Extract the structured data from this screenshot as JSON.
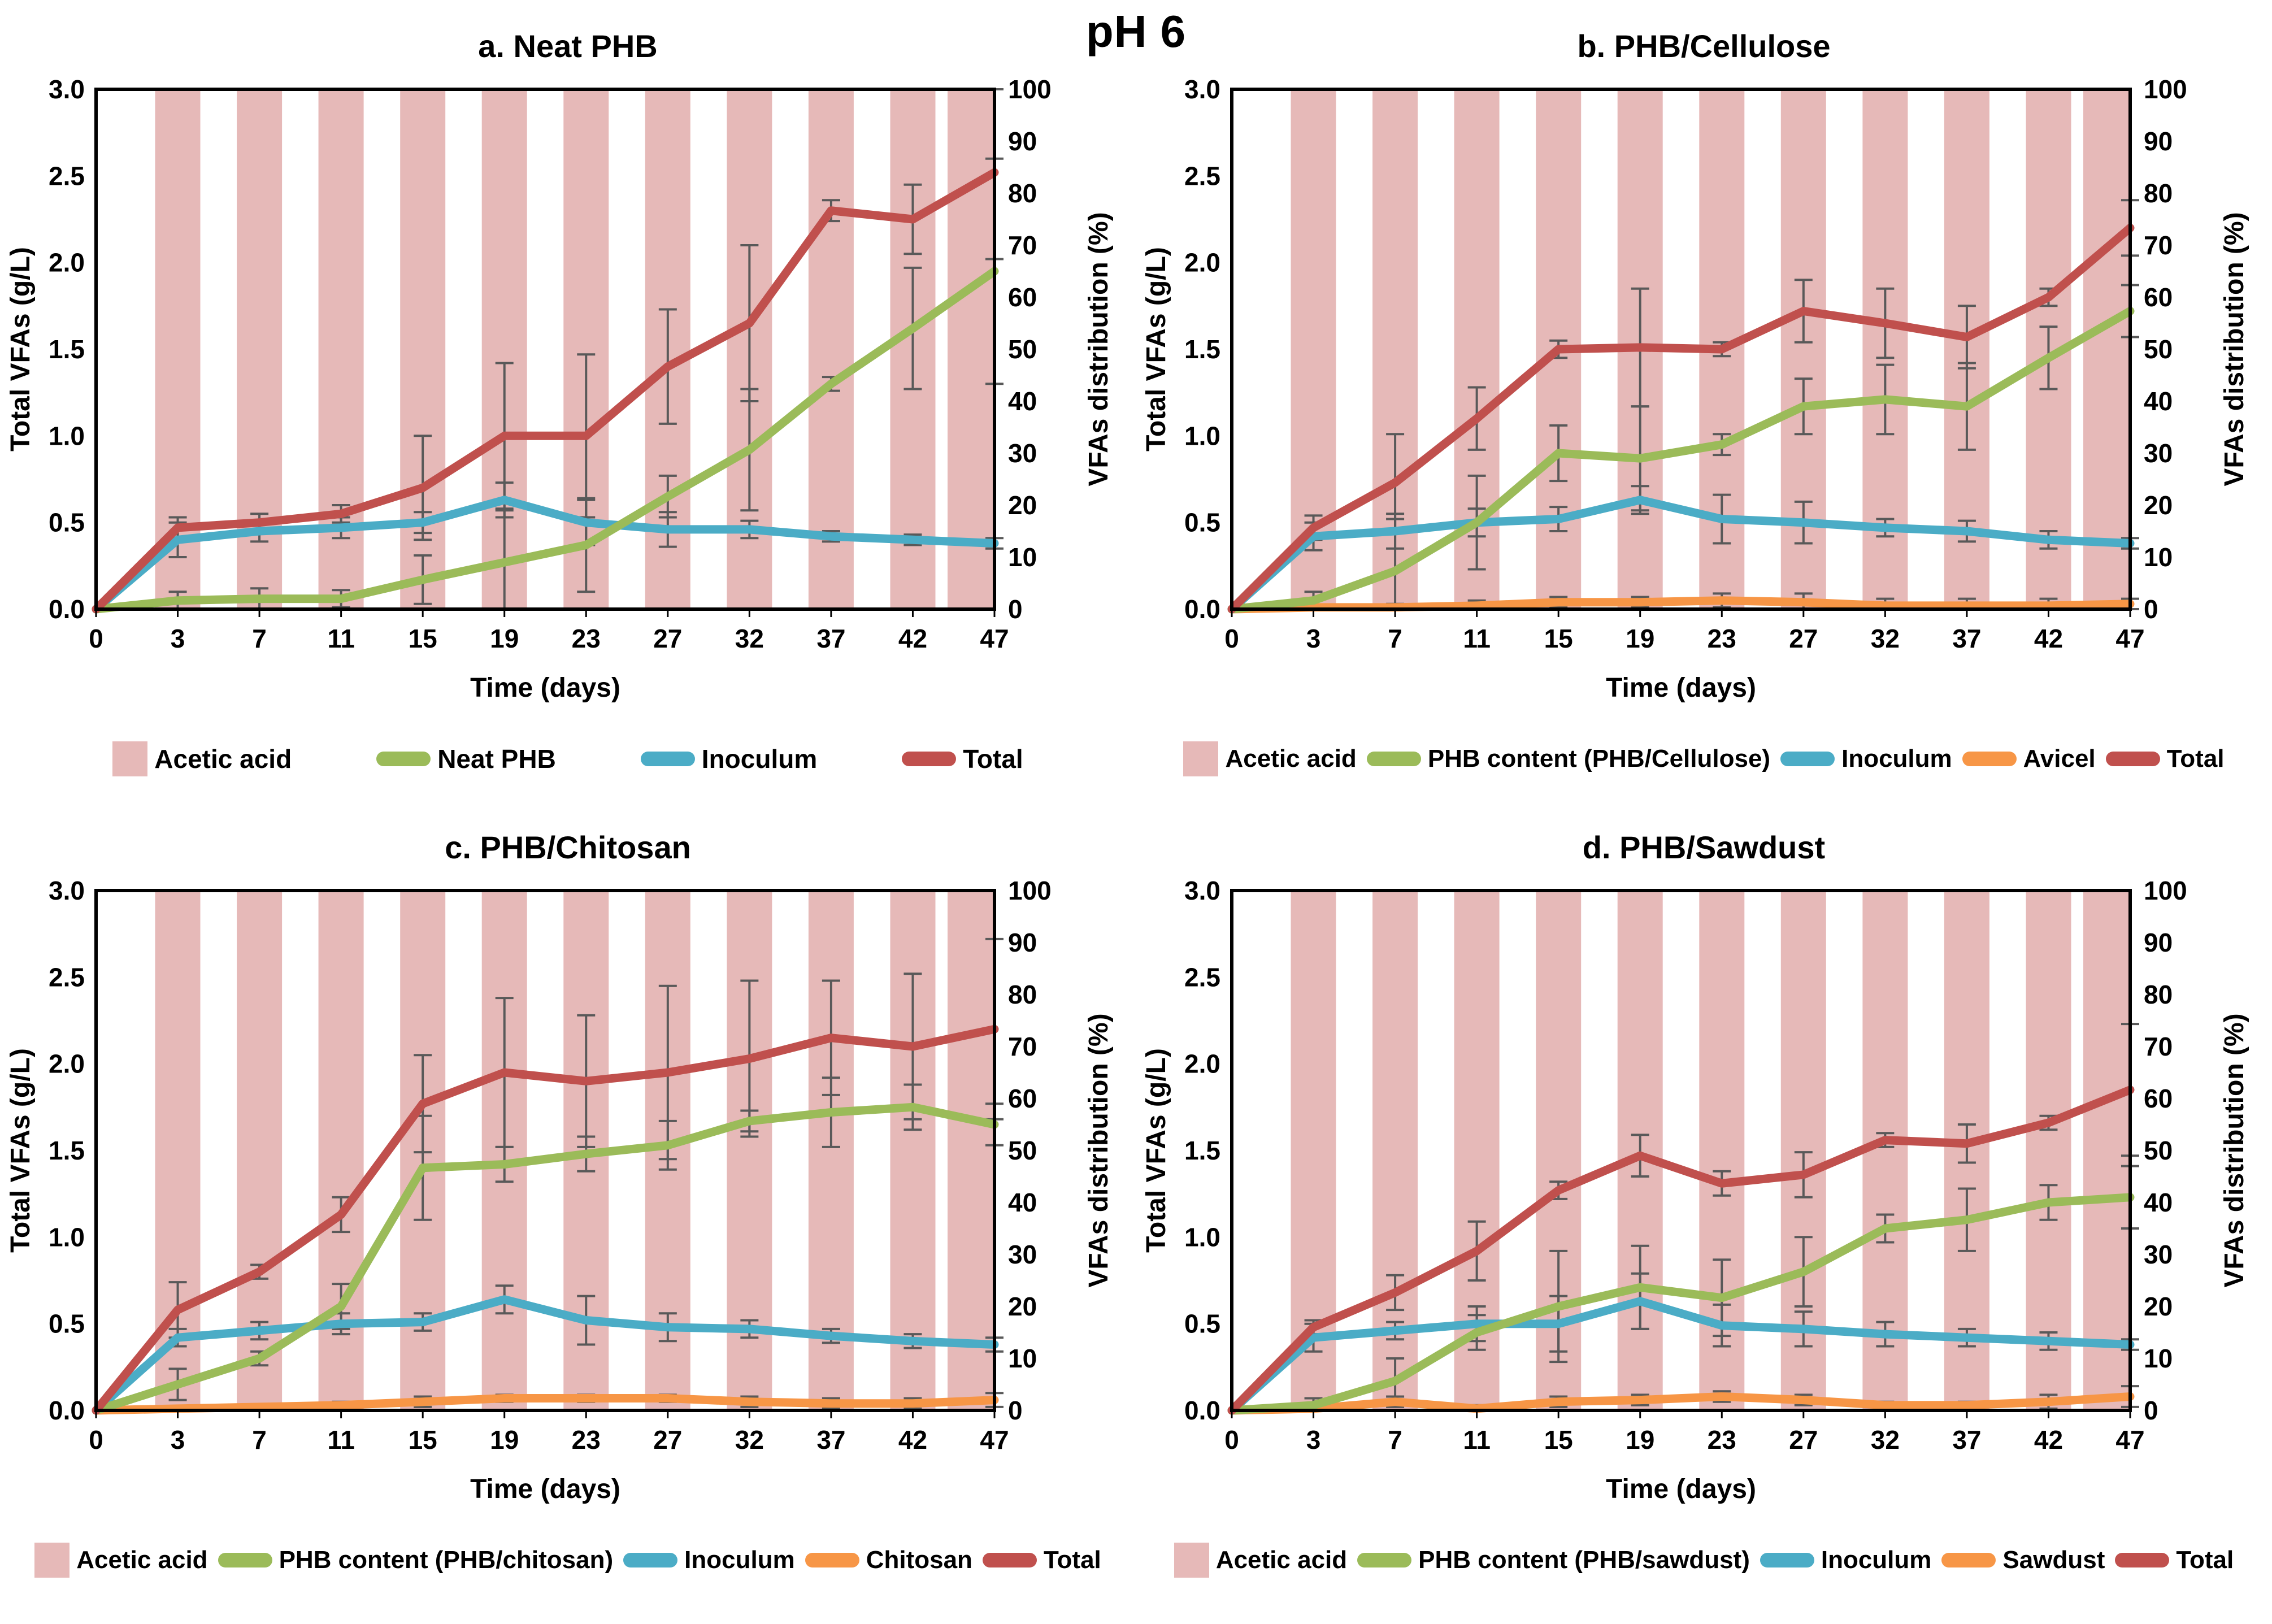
{
  "page_title": "pH 6",
  "colors": {
    "bar_pink": "#E6B9B8",
    "green": "#9BBB59",
    "blue": "#4BACC6",
    "red": "#C0504D",
    "orange": "#F79646",
    "error_gray": "#595959",
    "text": "#000000"
  },
  "axes": {
    "x_ticks": [
      0,
      3,
      7,
      11,
      15,
      19,
      23,
      27,
      32,
      37,
      42,
      47
    ],
    "y_left_ticks": [
      "0.0",
      "0.5",
      "1.0",
      "1.5",
      "2.0",
      "2.5",
      "3.0"
    ],
    "y_right_ticks": [
      "0",
      "10",
      "20",
      "30",
      "40",
      "50",
      "60",
      "70",
      "80",
      "90",
      "100"
    ]
  },
  "chart_data": [
    {
      "type": "bar+line",
      "panel": "a",
      "title": "a. Neat PHB",
      "xlabel": "Time (days)",
      "ylabel_left": "Total VFAs (g/L)",
      "ylabel_right": "VFAs distribution (%)",
      "ylim_left": [
        0,
        3
      ],
      "ylim_right": [
        0,
        100
      ],
      "x": [
        0,
        3,
        7,
        11,
        15,
        19,
        23,
        27,
        32,
        37,
        42,
        47
      ],
      "bar_series": {
        "name": "Acetic acid",
        "axis": "right",
        "color": "#E6B9B8",
        "values": [
          null,
          100,
          100,
          100,
          100,
          100,
          100,
          100,
          100,
          100,
          100,
          100
        ]
      },
      "series": [
        {
          "name": "Inoculum",
          "color": "#4BACC6",
          "values": [
            0,
            0.4,
            0.45,
            0.47,
            0.5,
            0.63,
            0.5,
            0.46,
            0.46,
            0.42,
            0.4,
            0.38
          ],
          "errors": [
            0,
            0.1,
            0.06,
            0.06,
            0.06,
            0.1,
            0.13,
            0.1,
            0.05,
            0.03,
            0.03,
            0.03
          ]
        },
        {
          "name": "Neat PHB",
          "color": "#9BBB59",
          "values": [
            0,
            0.05,
            0.06,
            0.06,
            0.17,
            0.27,
            0.37,
            0.65,
            0.92,
            1.3,
            1.62,
            1.95
          ],
          "errors": [
            0,
            0.05,
            0.06,
            0.05,
            0.14,
            0.3,
            0.27,
            0.12,
            0.35,
            0.04,
            0.35,
            0.65
          ]
        },
        {
          "name": "Total",
          "color": "#C0504D",
          "values": [
            0,
            0.47,
            0.5,
            0.55,
            0.7,
            1.0,
            1.0,
            1.4,
            1.65,
            2.3,
            2.25,
            2.52
          ],
          "errors": [
            0,
            0.06,
            0.05,
            0.05,
            0.3,
            0.42,
            0.47,
            0.33,
            0.45,
            0.06,
            0.2,
            0.5
          ]
        }
      ],
      "legend": [
        {
          "label": "Acetic acid",
          "type": "bar",
          "color": "#E6B9B8"
        },
        {
          "label": "Neat PHB",
          "type": "line",
          "color": "#9BBB59"
        },
        {
          "label": "Inoculum",
          "type": "line",
          "color": "#4BACC6"
        },
        {
          "label": "Total",
          "type": "line",
          "color": "#C0504D"
        }
      ]
    },
    {
      "type": "bar+line",
      "panel": "b",
      "title": "b. PHB/Cellulose",
      "xlabel": "Time (days)",
      "ylabel_left": "Total VFAs (g/L)",
      "ylabel_right": "VFAs distribution (%)",
      "ylim_left": [
        0,
        3
      ],
      "ylim_right": [
        0,
        100
      ],
      "x": [
        0,
        3,
        7,
        11,
        15,
        19,
        23,
        27,
        32,
        37,
        42,
        47
      ],
      "bar_series": {
        "name": "Acetic acid",
        "axis": "right",
        "color": "#E6B9B8",
        "values": [
          null,
          100,
          100,
          100,
          100,
          100,
          100,
          100,
          100,
          100,
          100,
          100
        ]
      },
      "series": [
        {
          "name": "Avicel",
          "color": "#F79646",
          "values": [
            0,
            0.01,
            0.01,
            0.02,
            0.04,
            0.04,
            0.05,
            0.04,
            0.02,
            0.02,
            0.02,
            0.03
          ],
          "errors": [
            0,
            0.05,
            0.02,
            0.03,
            0.03,
            0.03,
            0.04,
            0.05,
            0.04,
            0.04,
            0.04,
            0.03
          ]
        },
        {
          "name": "Inoculum",
          "color": "#4BACC6",
          "values": [
            0,
            0.42,
            0.45,
            0.5,
            0.52,
            0.63,
            0.52,
            0.5,
            0.47,
            0.45,
            0.4,
            0.38
          ],
          "errors": [
            0,
            0.08,
            0.1,
            0.08,
            0.07,
            0.08,
            0.14,
            0.12,
            0.05,
            0.06,
            0.05,
            0.03
          ]
        },
        {
          "name": "PHB content (PHB/Cellulose)",
          "color": "#9BBB59",
          "values": [
            0,
            0.05,
            0.22,
            0.5,
            0.9,
            0.87,
            0.95,
            1.17,
            1.21,
            1.17,
            1.45,
            1.72
          ],
          "errors": [
            0,
            0.05,
            0.3,
            0.27,
            0.16,
            0.3,
            0.06,
            0.16,
            0.2,
            0.25,
            0.18,
            0.15
          ]
        },
        {
          "name": "Total",
          "color": "#C0504D",
          "values": [
            0,
            0.47,
            0.73,
            1.1,
            1.5,
            1.51,
            1.5,
            1.72,
            1.65,
            1.57,
            1.8,
            2.2
          ],
          "errors": [
            0,
            0.07,
            0.28,
            0.18,
            0.05,
            0.34,
            0.04,
            0.18,
            0.2,
            0.18,
            0.05,
            0.16
          ]
        }
      ],
      "legend": [
        {
          "label": "Acetic acid",
          "type": "bar",
          "color": "#E6B9B8"
        },
        {
          "label": "PHB content (PHB/Cellulose)",
          "type": "line",
          "color": "#9BBB59"
        },
        {
          "label": "Inoculum",
          "type": "line",
          "color": "#4BACC6"
        },
        {
          "label": "Avicel",
          "type": "line",
          "color": "#F79646"
        },
        {
          "label": "Total",
          "type": "line",
          "color": "#C0504D"
        }
      ]
    },
    {
      "type": "bar+line",
      "panel": "c",
      "title": "c. PHB/Chitosan",
      "xlabel": "Time (days)",
      "ylabel_left": "Total VFAs (g/L)",
      "ylabel_right": "VFAs distribution (%)",
      "ylim_left": [
        0,
        3
      ],
      "ylim_right": [
        0,
        100
      ],
      "x": [
        0,
        3,
        7,
        11,
        15,
        19,
        23,
        27,
        32,
        37,
        42,
        47
      ],
      "bar_series": {
        "name": "Acetic acid",
        "axis": "right",
        "color": "#E6B9B8",
        "values": [
          null,
          100,
          100,
          100,
          100,
          100,
          100,
          100,
          100,
          100,
          100,
          100
        ]
      },
      "series": [
        {
          "name": "Chitosan",
          "color": "#F79646",
          "values": [
            0,
            0.01,
            0.02,
            0.03,
            0.05,
            0.07,
            0.07,
            0.07,
            0.05,
            0.04,
            0.04,
            0.06
          ],
          "errors": [
            0,
            0.01,
            0.01,
            0.02,
            0.03,
            0.02,
            0.02,
            0.02,
            0.03,
            0.03,
            0.03,
            0.04
          ]
        },
        {
          "name": "Inoculum",
          "color": "#4BACC6",
          "values": [
            0,
            0.42,
            0.46,
            0.5,
            0.51,
            0.64,
            0.52,
            0.48,
            0.47,
            0.43,
            0.4,
            0.38
          ],
          "errors": [
            0,
            0.05,
            0.05,
            0.06,
            0.05,
            0.08,
            0.14,
            0.08,
            0.05,
            0.04,
            0.04,
            0.04
          ]
        },
        {
          "name": "PHB content (PHB/chitosan)",
          "color": "#9BBB59",
          "values": [
            0,
            0.15,
            0.3,
            0.6,
            1.4,
            1.42,
            1.48,
            1.53,
            1.67,
            1.72,
            1.75,
            1.65
          ],
          "errors": [
            0,
            0.09,
            0.04,
            0.13,
            0.3,
            0.1,
            0.1,
            0.14,
            0.06,
            0.2,
            0.13,
            0.12
          ]
        },
        {
          "name": "Total",
          "color": "#C0504D",
          "values": [
            0,
            0.58,
            0.8,
            1.13,
            1.77,
            1.95,
            1.9,
            1.95,
            2.03,
            2.15,
            2.1,
            2.2
          ],
          "errors": [
            0,
            0.16,
            0.04,
            0.1,
            0.28,
            0.43,
            0.38,
            0.5,
            0.45,
            0.33,
            0.42,
            0.52
          ]
        }
      ],
      "legend": [
        {
          "label": "Acetic acid",
          "type": "bar",
          "color": "#E6B9B8"
        },
        {
          "label": "PHB content (PHB/chitosan)",
          "type": "line",
          "color": "#9BBB59"
        },
        {
          "label": "Inoculum",
          "type": "line",
          "color": "#4BACC6"
        },
        {
          "label": "Chitosan",
          "type": "line",
          "color": "#F79646"
        },
        {
          "label": "Total",
          "type": "line",
          "color": "#C0504D"
        }
      ]
    },
    {
      "type": "bar+line",
      "panel": "d",
      "title": "d. PHB/Sawdust",
      "xlabel": "Time (days)",
      "ylabel_left": "Total VFAs (g/L)",
      "ylabel_right": "VFAs distribution (%)",
      "ylim_left": [
        0,
        3
      ],
      "ylim_right": [
        0,
        100
      ],
      "x": [
        0,
        3,
        7,
        11,
        15,
        19,
        23,
        27,
        32,
        37,
        42,
        47
      ],
      "bar_series": {
        "name": "Acetic acid",
        "axis": "right",
        "color": "#E6B9B8",
        "values": [
          null,
          100,
          100,
          100,
          100,
          100,
          100,
          100,
          100,
          100,
          100,
          100
        ]
      },
      "series": [
        {
          "name": "Sawdust",
          "color": "#F79646",
          "values": [
            0,
            0.01,
            0.05,
            0.01,
            0.05,
            0.06,
            0.08,
            0.06,
            0.03,
            0.03,
            0.05,
            0.08
          ],
          "errors": [
            0,
            0.02,
            0.03,
            0.02,
            0.03,
            0.03,
            0.03,
            0.03,
            0.02,
            0.02,
            0.04,
            0.06
          ]
        },
        {
          "name": "Inoculum",
          "color": "#4BACC6",
          "values": [
            0,
            0.42,
            0.46,
            0.5,
            0.5,
            0.63,
            0.49,
            0.47,
            0.44,
            0.42,
            0.4,
            0.38
          ],
          "errors": [
            0,
            0.08,
            0.05,
            0.1,
            0.16,
            0.16,
            0.12,
            0.1,
            0.07,
            0.05,
            0.05,
            0.03
          ]
        },
        {
          "name": "PHB content (PHB/sawdust)",
          "color": "#9BBB59",
          "values": [
            0,
            0.03,
            0.17,
            0.45,
            0.6,
            0.71,
            0.65,
            0.8,
            1.05,
            1.1,
            1.2,
            1.23
          ],
          "errors": [
            0,
            0.04,
            0.13,
            0.1,
            0.32,
            0.24,
            0.22,
            0.2,
            0.08,
            0.18,
            0.1,
            0.18
          ]
        },
        {
          "name": "Total",
          "color": "#C0504D",
          "values": [
            0,
            0.48,
            0.68,
            0.92,
            1.27,
            1.47,
            1.31,
            1.36,
            1.56,
            1.54,
            1.66,
            1.85
          ],
          "errors": [
            0,
            0.04,
            0.1,
            0.17,
            0.05,
            0.12,
            0.07,
            0.13,
            0.04,
            0.11,
            0.04,
            0.38
          ]
        }
      ],
      "legend": [
        {
          "label": "Acetic acid",
          "type": "bar",
          "color": "#E6B9B8"
        },
        {
          "label": "PHB content (PHB/sawdust)",
          "type": "line",
          "color": "#9BBB59"
        },
        {
          "label": "Inoculum",
          "type": "line",
          "color": "#4BACC6"
        },
        {
          "label": "Sawdust",
          "type": "line",
          "color": "#F79646"
        },
        {
          "label": "Total",
          "type": "line",
          "color": "#C0504D"
        }
      ]
    }
  ]
}
